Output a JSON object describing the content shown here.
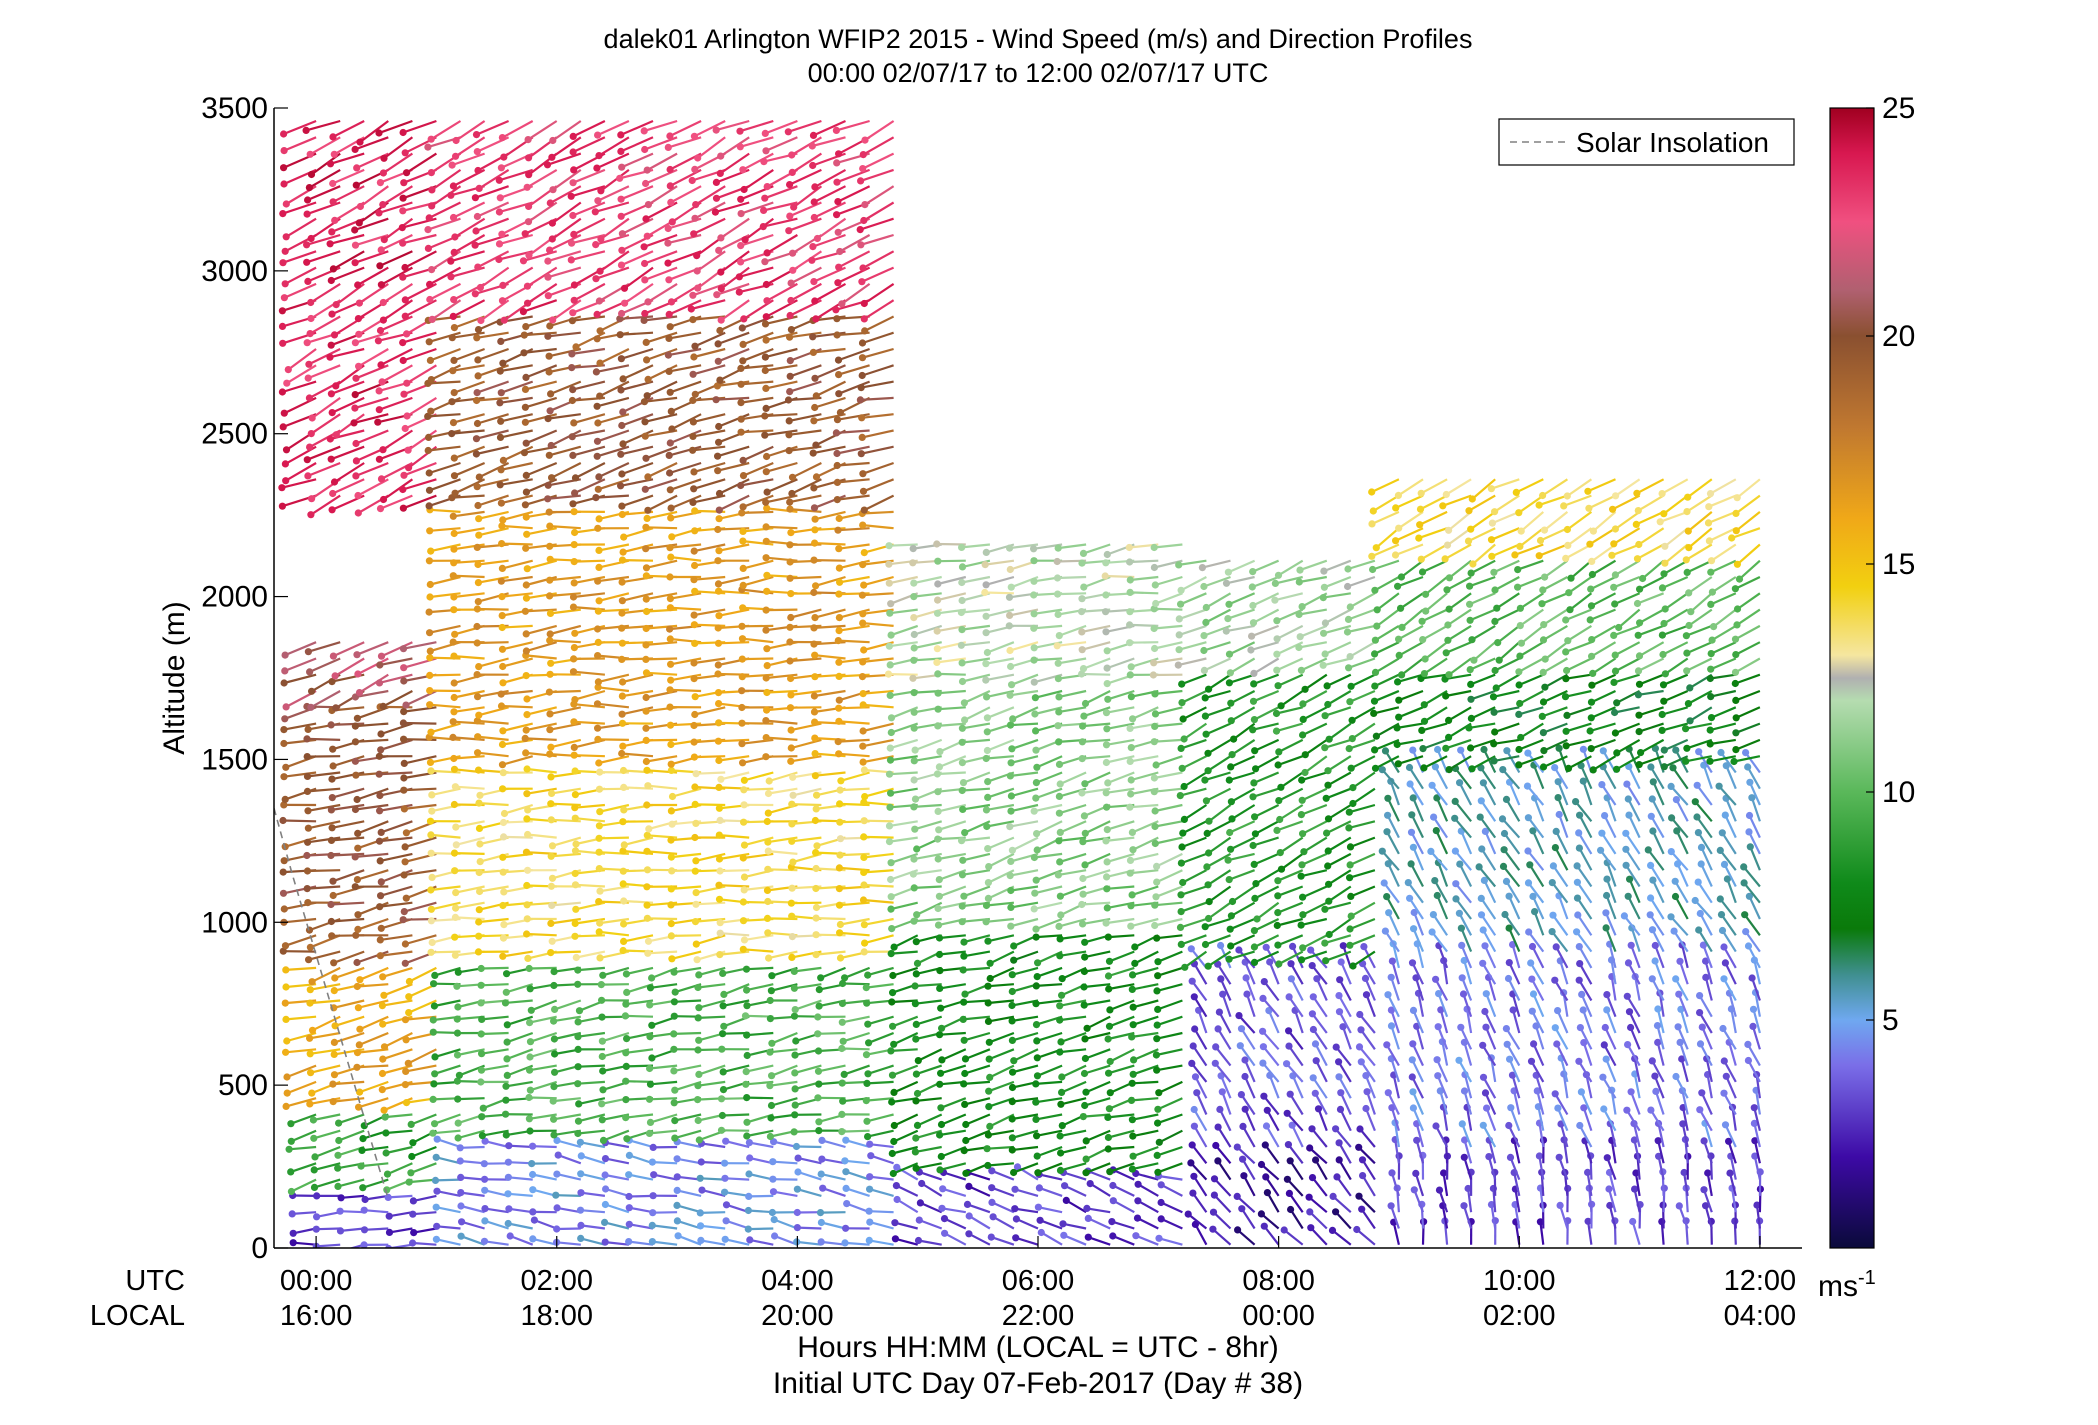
{
  "chart_data": {
    "type": "scatter",
    "plot_style": "wind barb profiles (sticks with dot heads), colored by speed",
    "title": "dalek01 Arlington WFIP2 2015 - Wind Speed (m/s) and Direction Profiles",
    "subtitle": "00:00 02/07/17 to 12:00 02/07/17  UTC",
    "ylabel": "Altitude (m)",
    "xlabel": "Hours HH:MM  (LOCAL = UTC - 8hr)",
    "xlabel2": "Initial UTC Day 07-Feb-2017 (Day # 38)",
    "ylim": [
      0,
      3500
    ],
    "xlim_hours": [
      -0.35,
      12.35
    ],
    "y_ticks": [
      "0",
      "500",
      "1000",
      "1500",
      "2000",
      "2500",
      "3000",
      "3500"
    ],
    "y_tick_values": [
      0,
      500,
      1000,
      1500,
      2000,
      2500,
      3000,
      3500
    ],
    "x_row_labels": {
      "utc": "UTC",
      "local": "LOCAL"
    },
    "x_ticks_hours": [
      0,
      2,
      4,
      6,
      8,
      10,
      12
    ],
    "x_ticks_utc": [
      "00:00",
      "02:00",
      "04:00",
      "06:00",
      "08:00",
      "10:00",
      "12:00"
    ],
    "x_ticks_local": [
      "16:00",
      "18:00",
      "20:00",
      "22:00",
      "00:00",
      "02:00",
      "04:00"
    ],
    "legend": {
      "label": "Solar Insolation",
      "position": "top-right",
      "line_style": "dashed",
      "color": "#808080"
    },
    "colorbar": {
      "min": 0,
      "max": 25,
      "ticks": [
        "5",
        "10",
        "15",
        "20",
        "25"
      ],
      "tick_values": [
        5,
        10,
        15,
        20,
        25
      ],
      "unit_base": "ms",
      "unit_exp": "-1",
      "stops": [
        {
          "v": 0,
          "c": "#0a0a3a"
        },
        {
          "v": 2,
          "c": "#3d0aa6"
        },
        {
          "v": 4,
          "c": "#7a6ee8"
        },
        {
          "v": 5,
          "c": "#6fa8f0"
        },
        {
          "v": 6,
          "c": "#3f8f8f"
        },
        {
          "v": 7,
          "c": "#0a7a0a"
        },
        {
          "v": 8,
          "c": "#0f8a1a"
        },
        {
          "v": 10,
          "c": "#5ab85a"
        },
        {
          "v": 12,
          "c": "#b5dcb0"
        },
        {
          "v": 12.5,
          "c": "#b0b0b0"
        },
        {
          "v": 13,
          "c": "#f5e6a0"
        },
        {
          "v": 14.5,
          "c": "#f2d010"
        },
        {
          "v": 16,
          "c": "#f0a818"
        },
        {
          "v": 18,
          "c": "#c07830"
        },
        {
          "v": 20,
          "c": "#8a5030"
        },
        {
          "v": 21,
          "c": "#b06070"
        },
        {
          "v": 22.5,
          "c": "#f05080"
        },
        {
          "v": 24,
          "c": "#d81850"
        },
        {
          "v": 25,
          "c": "#a00020"
        }
      ]
    },
    "solar_insolation": {
      "x_hours": [
        -0.35,
        -0.2,
        0.0,
        0.2,
        0.4,
        0.6
      ],
      "altitude": [
        1350,
        1150,
        900,
        650,
        400,
        150
      ]
    },
    "wind_field": {
      "time_step_hours": 0.2,
      "layer_step_m": 50,
      "segments": [
        {
          "t": [
            0.0,
            1.2
          ],
          "z": [
            0,
            200
          ],
          "speed": 3,
          "dir": 265
        },
        {
          "t": [
            0.0,
            1.2
          ],
          "z": [
            200,
            450
          ],
          "speed": 9,
          "dir": 255
        },
        {
          "t": [
            0.0,
            1.2
          ],
          "z": [
            450,
            900
          ],
          "speed": 16,
          "dir": 255
        },
        {
          "t": [
            0.0,
            1.2
          ],
          "z": [
            900,
            1700
          ],
          "speed": 19.5,
          "dir": 260
        },
        {
          "t": [
            0.0,
            1.2
          ],
          "z": [
            1700,
            1900
          ],
          "speed": 21,
          "dir": 250
        },
        {
          "t": [
            0.0,
            1.2
          ],
          "z": [
            2300,
            3500
          ],
          "speed": 23.5,
          "dir": 245
        },
        {
          "t": [
            1.2,
            5.0
          ],
          "z": [
            0,
            350
          ],
          "speed": 4.5,
          "dir": 280
        },
        {
          "t": [
            1.2,
            5.0
          ],
          "z": [
            350,
            900
          ],
          "speed": 9.5,
          "dir": 260
        },
        {
          "t": [
            1.2,
            5.0
          ],
          "z": [
            900,
            1500
          ],
          "speed": 14,
          "dir": 265
        },
        {
          "t": [
            1.2,
            5.0
          ],
          "z": [
            1500,
            2300
          ],
          "speed": 16.5,
          "dir": 265
        },
        {
          "t": [
            1.2,
            5.0
          ],
          "z": [
            2300,
            2900
          ],
          "speed": 19.5,
          "dir": 255
        },
        {
          "t": [
            1.2,
            5.0
          ],
          "z": [
            2900,
            3500
          ],
          "speed": 23,
          "dir": 245
        },
        {
          "t": [
            5.0,
            7.4
          ],
          "z": [
            0,
            250
          ],
          "speed": 3,
          "dir": 290
        },
        {
          "t": [
            5.0,
            7.4
          ],
          "z": [
            250,
            1000
          ],
          "speed": 8,
          "dir": 255
        },
        {
          "t": [
            5.0,
            7.4
          ],
          "z": [
            1000,
            1750
          ],
          "speed": 11,
          "dir": 255
        },
        {
          "t": [
            5.0,
            7.4
          ],
          "z": [
            1750,
            2200
          ],
          "speed": 12,
          "dir": 260
        },
        {
          "t": [
            7.4,
            9.0
          ],
          "z": [
            0,
            300
          ],
          "speed": 2,
          "dir": 320
        },
        {
          "t": [
            7.4,
            9.0
          ],
          "z": [
            300,
            900
          ],
          "speed": 3.5,
          "dir": 330
        },
        {
          "t": [
            7.4,
            9.0
          ],
          "z": [
            900,
            1800
          ],
          "speed": 8.5,
          "dir": 245
        },
        {
          "t": [
            7.4,
            9.0
          ],
          "z": [
            1800,
            2150
          ],
          "speed": 11.5,
          "dir": 250
        },
        {
          "t": [
            9.0,
            12.2
          ],
          "z": [
            0,
            300
          ],
          "speed": 3,
          "dir": 350
        },
        {
          "t": [
            9.0,
            12.2
          ],
          "z": [
            300,
            900
          ],
          "speed": 4,
          "dir": 340
        },
        {
          "t": [
            9.0,
            12.2
          ],
          "z": [
            900,
            1500
          ],
          "speed": 5.5,
          "dir": 330
        },
        {
          "t": [
            9.0,
            12.2
          ],
          "z": [
            1500,
            1800
          ],
          "speed": 7.5,
          "dir": 250
        },
        {
          "t": [
            9.0,
            12.2
          ],
          "z": [
            1800,
            2150
          ],
          "speed": 10,
          "dir": 240
        },
        {
          "t": [
            9.0,
            12.2
          ],
          "z": [
            2150,
            2400
          ],
          "speed": 14,
          "dir": 240
        }
      ]
    }
  }
}
